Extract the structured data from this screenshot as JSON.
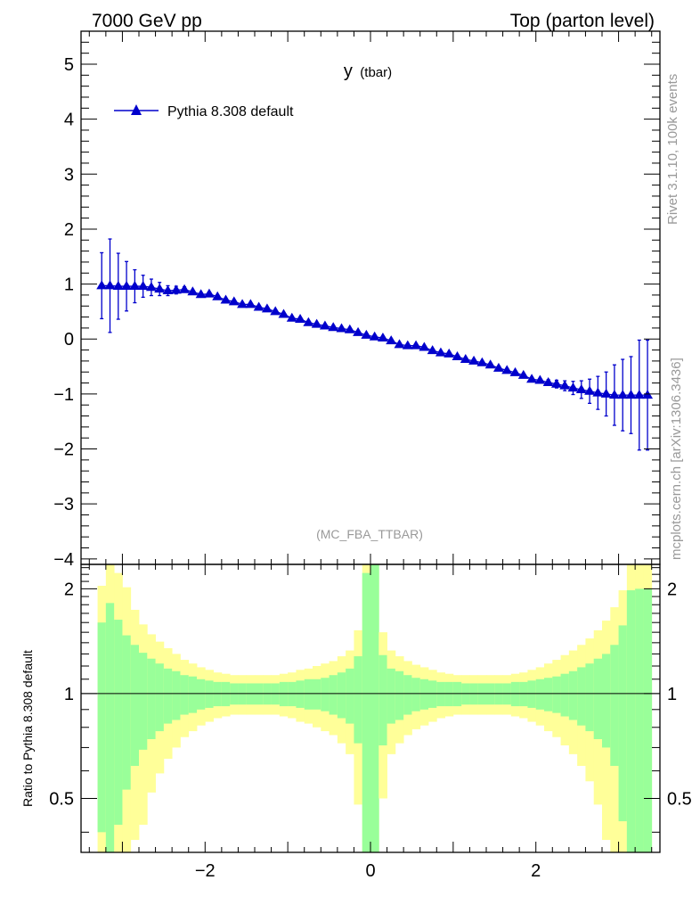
{
  "header": {
    "energy_label": "7000 GeV pp",
    "process_label": "Top (parton level)"
  },
  "side_labels": {
    "rivet": "Rivet 3.1.10,  100k events",
    "source": "mcplots.cern.ch [arXiv:1306.3436]"
  },
  "analysis_tag": "(MC_FBA_TTBAR)",
  "colors": {
    "series": "#0000cc",
    "band_outer": "#ffff99",
    "band_inner": "#99ff99",
    "axis": "#000000",
    "muted_text": "#999999"
  },
  "chart_data": [
    {
      "type": "scatter",
      "title_main": "y",
      "title_sub": "(tbar)",
      "xlim": [
        -3.5,
        3.5
      ],
      "ylim": [
        -4.1,
        5.6
      ],
      "yticks": [
        -4,
        -3,
        -2,
        -1,
        0,
        1,
        2,
        3,
        4,
        5
      ],
      "ytick_labels": [
        "−4",
        "−3",
        "−2",
        "−1",
        "0",
        "1",
        "2",
        "3",
        "4",
        "5"
      ],
      "grid": false,
      "legend_position": "top-left",
      "series": [
        {
          "name": "Pythia 8.308 default",
          "marker": "triangle-up",
          "x": [
            -3.25,
            -3.15,
            -3.05,
            -2.95,
            -2.85,
            -2.75,
            -2.65,
            -2.55,
            -2.45,
            -2.35,
            -2.25,
            -2.15,
            -2.05,
            -1.95,
            -1.85,
            -1.75,
            -1.65,
            -1.55,
            -1.45,
            -1.35,
            -1.25,
            -1.15,
            -1.05,
            -0.95,
            -0.85,
            -0.75,
            -0.65,
            -0.55,
            -0.45,
            -0.35,
            -0.25,
            -0.15,
            -0.05,
            0.05,
            0.15,
            0.25,
            0.35,
            0.45,
            0.55,
            0.65,
            0.75,
            0.85,
            0.95,
            1.05,
            1.15,
            1.25,
            1.35,
            1.45,
            1.55,
            1.65,
            1.75,
            1.85,
            1.95,
            2.05,
            2.15,
            2.25,
            2.35,
            2.45,
            2.55,
            2.65,
            2.75,
            2.85,
            2.95,
            3.05,
            3.15,
            3.25,
            3.35
          ],
          "y": [
            0.97,
            0.97,
            0.96,
            0.96,
            0.96,
            0.96,
            0.94,
            0.91,
            0.88,
            0.89,
            0.9,
            0.86,
            0.81,
            0.82,
            0.77,
            0.71,
            0.68,
            0.63,
            0.63,
            0.58,
            0.55,
            0.5,
            0.45,
            0.38,
            0.36,
            0.3,
            0.27,
            0.24,
            0.21,
            0.19,
            0.17,
            0.12,
            0.07,
            0.04,
            0.02,
            -0.03,
            -0.1,
            -0.12,
            -0.12,
            -0.15,
            -0.21,
            -0.25,
            -0.27,
            -0.32,
            -0.37,
            -0.4,
            -0.43,
            -0.47,
            -0.53,
            -0.57,
            -0.61,
            -0.66,
            -0.73,
            -0.75,
            -0.79,
            -0.82,
            -0.85,
            -0.89,
            -0.92,
            -0.95,
            -0.98,
            -1.0,
            -1.02,
            -1.02,
            -1.02,
            -1.02,
            -1.02
          ],
          "yerr": [
            0.6,
            0.85,
            0.6,
            0.45,
            0.3,
            0.2,
            0.15,
            0.12,
            0.09,
            0.07,
            0.05,
            0.04,
            0.03,
            0.03,
            0.03,
            0.02,
            0.02,
            0.02,
            0.02,
            0.02,
            0.02,
            0.02,
            0.02,
            0.02,
            0.02,
            0.02,
            0.02,
            0.02,
            0.02,
            0.02,
            0.02,
            0.02,
            0.02,
            0.02,
            0.02,
            0.02,
            0.02,
            0.02,
            0.02,
            0.02,
            0.02,
            0.02,
            0.02,
            0.02,
            0.02,
            0.02,
            0.02,
            0.02,
            0.02,
            0.02,
            0.03,
            0.03,
            0.03,
            0.04,
            0.05,
            0.07,
            0.09,
            0.12,
            0.16,
            0.22,
            0.3,
            0.4,
            0.55,
            0.65,
            0.7,
            1.0,
            1.0
          ]
        }
      ]
    },
    {
      "type": "area",
      "ylabel": "Ratio to Pythia 8.308 default",
      "xlim": [
        -3.5,
        3.5
      ],
      "ylim": [
        0.35,
        2.35
      ],
      "yticks": [
        0.5,
        1,
        2
      ],
      "ytick_labels": [
        "0.5",
        "1",
        "2"
      ],
      "xticks": [
        -2,
        0,
        2
      ],
      "xtick_labels": [
        "−2",
        "0",
        "2"
      ],
      "reference_line": 1,
      "bin_edges": [
        -3.3,
        -3.2,
        -3.1,
        -3.0,
        -2.9,
        -2.8,
        -2.7,
        -2.6,
        -2.5,
        -2.4,
        -2.3,
        -2.2,
        -2.1,
        -2.0,
        -1.9,
        -1.8,
        -1.7,
        -1.6,
        -1.5,
        -1.4,
        -1.3,
        -1.2,
        -1.1,
        -1.0,
        -0.9,
        -0.8,
        -0.7,
        -0.6,
        -0.5,
        -0.4,
        -0.3,
        -0.2,
        -0.1,
        0.0,
        0.1,
        0.2,
        0.3,
        0.4,
        0.5,
        0.6,
        0.7,
        0.8,
        0.9,
        1.0,
        1.1,
        1.2,
        1.3,
        1.4,
        1.5,
        1.6,
        1.7,
        1.8,
        1.9,
        2.0,
        2.1,
        2.2,
        2.3,
        2.4,
        2.5,
        2.6,
        2.7,
        2.8,
        2.9,
        3.0,
        3.1,
        3.2,
        3.3,
        3.4
      ],
      "band_outer_upper": [
        2.04,
        2.35,
        2.22,
        2.02,
        1.74,
        1.58,
        1.48,
        1.41,
        1.35,
        1.3,
        1.25,
        1.22,
        1.19,
        1.17,
        1.15,
        1.14,
        1.13,
        1.13,
        1.13,
        1.13,
        1.13,
        1.13,
        1.14,
        1.15,
        1.17,
        1.18,
        1.2,
        1.22,
        1.24,
        1.28,
        1.33,
        1.52,
        2.35,
        2.35,
        1.5,
        1.33,
        1.28,
        1.24,
        1.21,
        1.19,
        1.17,
        1.15,
        1.14,
        1.13,
        1.13,
        1.13,
        1.13,
        1.13,
        1.13,
        1.13,
        1.14,
        1.15,
        1.17,
        1.19,
        1.22,
        1.25,
        1.29,
        1.33,
        1.38,
        1.44,
        1.52,
        1.62,
        1.77,
        1.98,
        2.35,
        2.35,
        2.35
      ],
      "band_inner_upper": [
        1.6,
        1.82,
        1.63,
        1.47,
        1.38,
        1.31,
        1.26,
        1.22,
        1.18,
        1.16,
        1.13,
        1.12,
        1.1,
        1.09,
        1.08,
        1.08,
        1.07,
        1.07,
        1.07,
        1.07,
        1.07,
        1.07,
        1.08,
        1.08,
        1.09,
        1.1,
        1.1,
        1.11,
        1.13,
        1.15,
        1.18,
        1.28,
        2.22,
        2.35,
        1.29,
        1.18,
        1.16,
        1.13,
        1.11,
        1.1,
        1.09,
        1.08,
        1.08,
        1.08,
        1.07,
        1.07,
        1.07,
        1.07,
        1.07,
        1.07,
        1.08,
        1.08,
        1.09,
        1.1,
        1.11,
        1.12,
        1.14,
        1.16,
        1.19,
        1.22,
        1.26,
        1.3,
        1.38,
        1.57,
        1.98,
        2.0,
        2.0
      ],
      "band_inner_lower": [
        0.4,
        0.35,
        0.42,
        0.53,
        0.62,
        0.69,
        0.74,
        0.78,
        0.82,
        0.84,
        0.87,
        0.88,
        0.9,
        0.91,
        0.92,
        0.92,
        0.93,
        0.93,
        0.93,
        0.93,
        0.93,
        0.93,
        0.92,
        0.92,
        0.91,
        0.9,
        0.9,
        0.89,
        0.87,
        0.85,
        0.82,
        0.72,
        0.35,
        0.35,
        0.71,
        0.82,
        0.84,
        0.87,
        0.89,
        0.9,
        0.91,
        0.92,
        0.92,
        0.92,
        0.93,
        0.93,
        0.93,
        0.93,
        0.93,
        0.93,
        0.92,
        0.92,
        0.91,
        0.9,
        0.89,
        0.88,
        0.86,
        0.84,
        0.81,
        0.78,
        0.74,
        0.7,
        0.62,
        0.43,
        0.35,
        0.35,
        0.35
      ],
      "band_outer_lower": [
        0.35,
        0.35,
        0.35,
        0.35,
        0.38,
        0.42,
        0.52,
        0.59,
        0.65,
        0.7,
        0.75,
        0.78,
        0.81,
        0.83,
        0.85,
        0.86,
        0.87,
        0.87,
        0.87,
        0.87,
        0.87,
        0.87,
        0.86,
        0.85,
        0.83,
        0.82,
        0.8,
        0.78,
        0.76,
        0.72,
        0.67,
        0.48,
        0.35,
        0.35,
        0.5,
        0.67,
        0.72,
        0.76,
        0.79,
        0.81,
        0.83,
        0.85,
        0.86,
        0.87,
        0.87,
        0.87,
        0.87,
        0.87,
        0.87,
        0.87,
        0.86,
        0.85,
        0.83,
        0.81,
        0.78,
        0.75,
        0.71,
        0.67,
        0.62,
        0.56,
        0.48,
        0.38,
        0.35,
        0.35,
        0.35,
        0.35,
        0.35
      ]
    }
  ]
}
